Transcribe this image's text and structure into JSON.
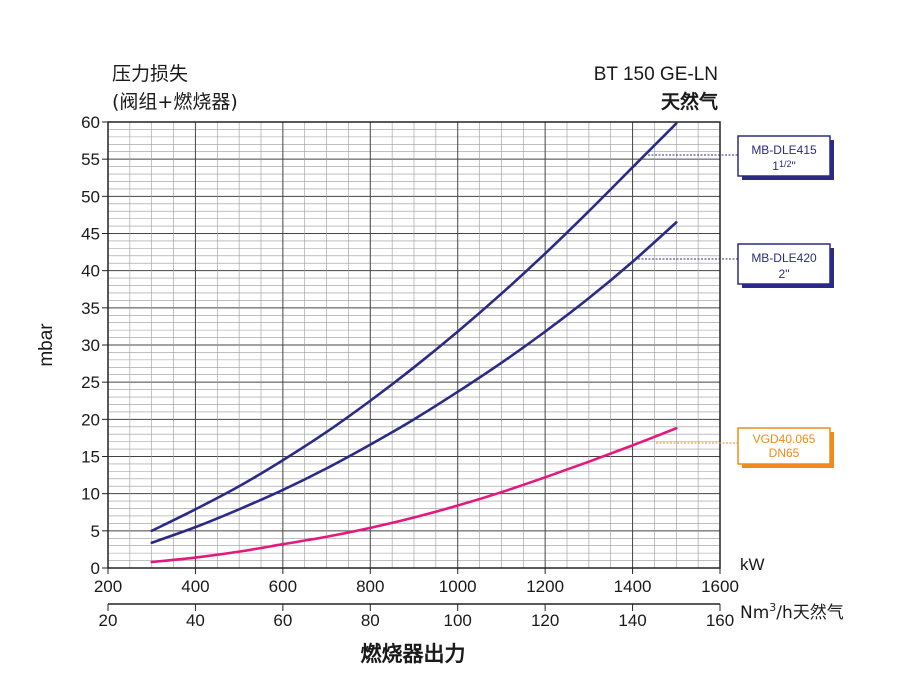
{
  "chart_data": {
    "type": "line",
    "title": "BT 150 GE-LN",
    "subtitle": "天然气",
    "ylabel_top_line1": "压力损失",
    "ylabel_top_line2": "(阀组+燃烧器)",
    "ylabel": "mbar",
    "xlabel": "燃烧器出力",
    "x_unit_kw": "kW",
    "x_unit_nm3_prefix": "Nm",
    "x_unit_nm3_sup": "3",
    "x_unit_nm3_suffix": "/h天然气",
    "xlim": [
      200,
      1600
    ],
    "ylim": [
      0,
      60
    ],
    "x_ticks_kw": [
      "200",
      "400",
      "600",
      "800",
      "1000",
      "1200",
      "1400",
      "1600"
    ],
    "x_ticks_nm3": [
      "20",
      "40",
      "60",
      "80",
      "100",
      "120",
      "140",
      "160"
    ],
    "y_ticks": [
      "0",
      "5",
      "10",
      "15",
      "20",
      "25",
      "30",
      "35",
      "40",
      "45",
      "50",
      "55",
      "60"
    ],
    "grid": true,
    "series": [
      {
        "name": "MB-DLE415 1½\"",
        "label_line1": "MB-DLE415",
        "label_line2": "1",
        "label_line2_frac": "1/2",
        "label_line2_suffix": "\"",
        "color": "#2b2b86",
        "x": [
          300,
          400,
          500,
          600,
          700,
          800,
          900,
          1000,
          1100,
          1200,
          1300,
          1400,
          1500
        ],
        "y": [
          5.0,
          7.9,
          11.0,
          14.5,
          18.3,
          22.5,
          27.0,
          31.8,
          36.9,
          42.3,
          48.0,
          53.9,
          59.8
        ]
      },
      {
        "name": "MB-DLE420 2\"",
        "label_line1": "MB-DLE420",
        "label_line2": "2\"",
        "color": "#2b2b86",
        "x": [
          300,
          400,
          500,
          600,
          700,
          800,
          900,
          1000,
          1100,
          1200,
          1300,
          1400,
          1500
        ],
        "y": [
          3.4,
          5.5,
          7.9,
          10.5,
          13.4,
          16.6,
          20.0,
          23.7,
          27.6,
          31.8,
          36.3,
          41.2,
          46.5
        ]
      },
      {
        "name": "VGD40.065 DN65",
        "label_line1": "VGD40.065",
        "label_line2": "DN65",
        "color": "#e5197d",
        "x": [
          300,
          400,
          500,
          600,
          700,
          800,
          900,
          1000,
          1100,
          1200,
          1300,
          1400,
          1500
        ],
        "y": [
          0.8,
          1.4,
          2.2,
          3.2,
          4.2,
          5.4,
          6.8,
          8.4,
          10.2,
          12.2,
          14.3,
          16.5,
          18.8
        ]
      }
    ]
  },
  "colors": {
    "grid_major": "#444444",
    "grid_minor": "#9a9a9a",
    "blue_curve": "#2b2b86",
    "magenta_curve": "#e5197d",
    "orange_box": "#f08a1c"
  }
}
